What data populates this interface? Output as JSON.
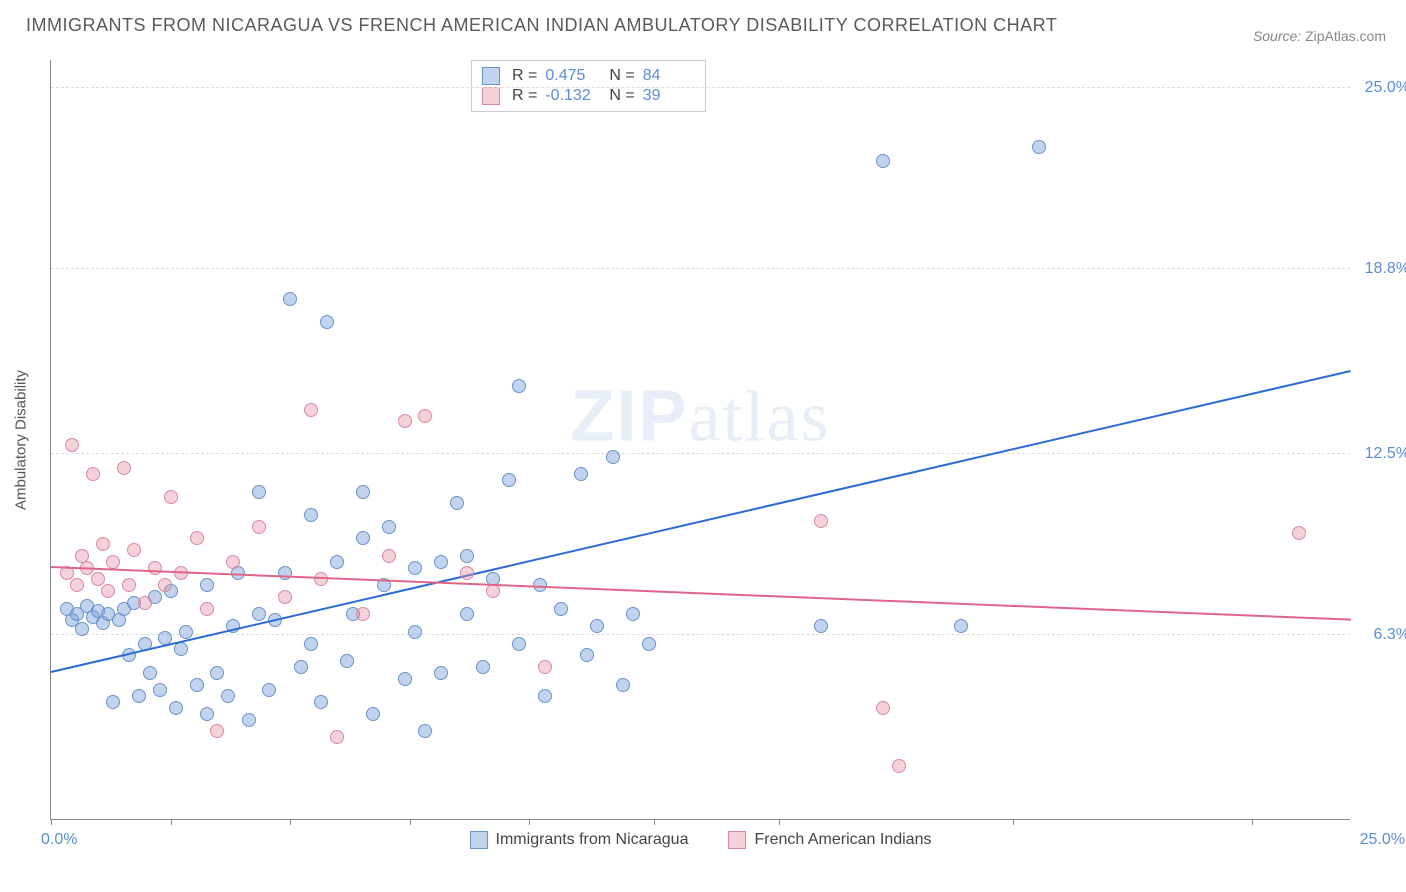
{
  "title": "IMMIGRANTS FROM NICARAGUA VS FRENCH AMERICAN INDIAN AMBULATORY DISABILITY CORRELATION CHART",
  "source_label": "Source:",
  "source_value": "ZipAtlas.com",
  "watermark": "ZIPatlas",
  "ylabel": "Ambulatory Disability",
  "chart": {
    "type": "scatter",
    "xlim": [
      0,
      25
    ],
    "ylim": [
      0,
      26
    ],
    "x_tick_positions": [
      0,
      2.3,
      4.6,
      6.9,
      9.2,
      11.6,
      14.0,
      18.5,
      23.1
    ],
    "x_labels": {
      "min": "0.0%",
      "max": "25.0%"
    },
    "y_ticks": [
      {
        "v": 6.3,
        "label": "6.3%"
      },
      {
        "v": 12.5,
        "label": "12.5%"
      },
      {
        "v": 18.8,
        "label": "18.8%"
      },
      {
        "v": 25.0,
        "label": "25.0%"
      }
    ],
    "grid_color": "#dddddd",
    "background_color": "#ffffff",
    "point_radius": 7,
    "series": [
      {
        "name": "Immigrants from Nicaragua",
        "fill": "rgba(120,160,216,0.45)",
        "stroke": "#6a93cc",
        "trend_color": "#2b6cd4",
        "R": "0.475",
        "N": "84",
        "trend": {
          "x1": 0,
          "y1": 5.0,
          "x2": 25,
          "y2": 15.3
        },
        "points": [
          [
            0.3,
            7.2
          ],
          [
            0.4,
            6.8
          ],
          [
            0.5,
            7.0
          ],
          [
            0.6,
            6.5
          ],
          [
            0.7,
            7.3
          ],
          [
            0.8,
            6.9
          ],
          [
            0.9,
            7.1
          ],
          [
            1.0,
            6.7
          ],
          [
            1.1,
            7.0
          ],
          [
            1.2,
            4.0
          ],
          [
            1.3,
            6.8
          ],
          [
            1.4,
            7.2
          ],
          [
            1.5,
            5.6
          ],
          [
            1.6,
            7.4
          ],
          [
            1.7,
            4.2
          ],
          [
            1.8,
            6.0
          ],
          [
            1.9,
            5.0
          ],
          [
            2.0,
            7.6
          ],
          [
            2.1,
            4.4
          ],
          [
            2.2,
            6.2
          ],
          [
            2.3,
            7.8
          ],
          [
            2.4,
            3.8
          ],
          [
            2.5,
            5.8
          ],
          [
            2.6,
            6.4
          ],
          [
            2.8,
            4.6
          ],
          [
            3.0,
            3.6
          ],
          [
            3.0,
            8.0
          ],
          [
            3.2,
            5.0
          ],
          [
            3.4,
            4.2
          ],
          [
            3.5,
            6.6
          ],
          [
            3.6,
            8.4
          ],
          [
            3.8,
            3.4
          ],
          [
            4.0,
            7.0
          ],
          [
            4.0,
            11.2
          ],
          [
            4.2,
            4.4
          ],
          [
            4.3,
            6.8
          ],
          [
            4.5,
            8.4
          ],
          [
            4.6,
            17.8
          ],
          [
            4.8,
            5.2
          ],
          [
            5.0,
            6.0
          ],
          [
            5.0,
            10.4
          ],
          [
            5.2,
            4.0
          ],
          [
            5.3,
            17.0
          ],
          [
            5.5,
            8.8
          ],
          [
            5.7,
            5.4
          ],
          [
            5.8,
            7.0
          ],
          [
            6.0,
            9.6
          ],
          [
            6.0,
            11.2
          ],
          [
            6.2,
            3.6
          ],
          [
            6.4,
            8.0
          ],
          [
            6.5,
            10.0
          ],
          [
            6.8,
            4.8
          ],
          [
            7.0,
            6.4
          ],
          [
            7.0,
            8.6
          ],
          [
            7.2,
            3.0
          ],
          [
            7.5,
            5.0
          ],
          [
            7.5,
            8.8
          ],
          [
            7.8,
            10.8
          ],
          [
            8.0,
            7.0
          ],
          [
            8.0,
            9.0
          ],
          [
            8.3,
            5.2
          ],
          [
            8.5,
            8.2
          ],
          [
            8.8,
            11.6
          ],
          [
            9.0,
            6.0
          ],
          [
            9.0,
            14.8
          ],
          [
            9.4,
            8.0
          ],
          [
            9.5,
            4.2
          ],
          [
            9.8,
            7.2
          ],
          [
            10.2,
            11.8
          ],
          [
            10.3,
            5.6
          ],
          [
            10.5,
            6.6
          ],
          [
            10.8,
            12.4
          ],
          [
            11.0,
            4.6
          ],
          [
            11.2,
            7.0
          ],
          [
            11.5,
            6.0
          ],
          [
            14.8,
            6.6
          ],
          [
            16.0,
            22.5
          ],
          [
            17.5,
            6.6
          ],
          [
            19.0,
            23.0
          ]
        ]
      },
      {
        "name": "French American Indians",
        "fill": "rgba(230,140,160,0.40)",
        "stroke": "#d98aa0",
        "trend_color": "#e06688",
        "R": "-0.132",
        "N": "39",
        "trend": {
          "x1": 0,
          "y1": 8.6,
          "x2": 25,
          "y2": 6.8
        },
        "points": [
          [
            0.3,
            8.4
          ],
          [
            0.4,
            12.8
          ],
          [
            0.5,
            8.0
          ],
          [
            0.6,
            9.0
          ],
          [
            0.7,
            8.6
          ],
          [
            0.8,
            11.8
          ],
          [
            0.9,
            8.2
          ],
          [
            1.0,
            9.4
          ],
          [
            1.1,
            7.8
          ],
          [
            1.2,
            8.8
          ],
          [
            1.4,
            12.0
          ],
          [
            1.5,
            8.0
          ],
          [
            1.6,
            9.2
          ],
          [
            1.8,
            7.4
          ],
          [
            2.0,
            8.6
          ],
          [
            2.2,
            8.0
          ],
          [
            2.3,
            11.0
          ],
          [
            2.5,
            8.4
          ],
          [
            2.8,
            9.6
          ],
          [
            3.0,
            7.2
          ],
          [
            3.2,
            3.0
          ],
          [
            3.5,
            8.8
          ],
          [
            4.0,
            10.0
          ],
          [
            4.5,
            7.6
          ],
          [
            5.0,
            14.0
          ],
          [
            5.2,
            8.2
          ],
          [
            5.5,
            2.8
          ],
          [
            6.0,
            7.0
          ],
          [
            6.5,
            9.0
          ],
          [
            6.8,
            13.6
          ],
          [
            7.2,
            13.8
          ],
          [
            8.0,
            8.4
          ],
          [
            8.5,
            7.8
          ],
          [
            9.5,
            5.2
          ],
          [
            14.8,
            10.2
          ],
          [
            16.0,
            3.8
          ],
          [
            16.3,
            1.8
          ],
          [
            24.0,
            9.8
          ]
        ]
      }
    ]
  },
  "legend": {
    "series1": "Immigrants from Nicaragua",
    "series2": "French American Indians"
  },
  "stats_labels": {
    "R": "R  =",
    "N": "N  ="
  }
}
